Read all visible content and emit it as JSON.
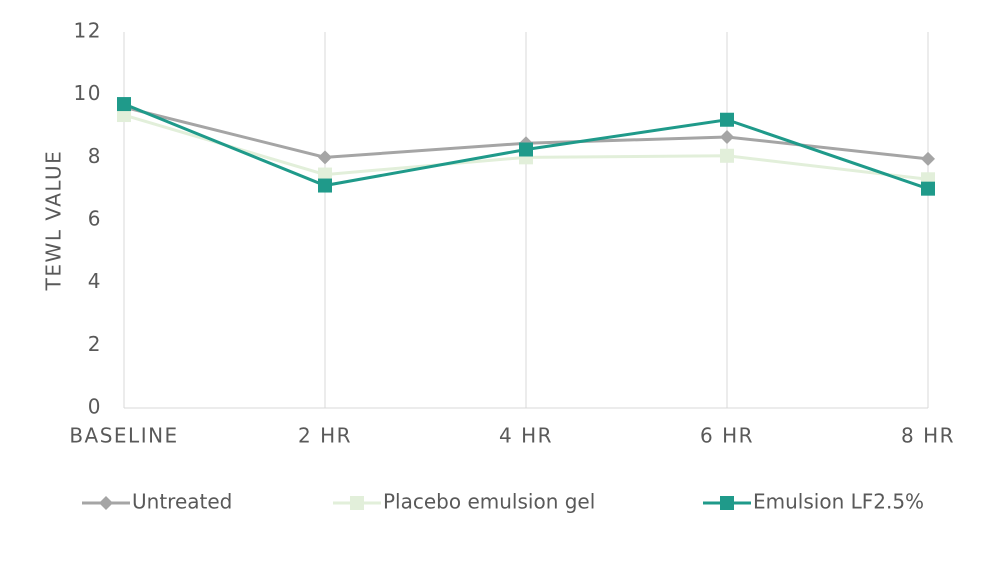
{
  "chart_data": {
    "type": "line",
    "categories": [
      "BASELINE",
      "2 HR",
      "4 HR",
      "6 HR",
      "8 HR"
    ],
    "y_label": "TEWL VALUE",
    "series": [
      {
        "name": "Untreated",
        "color": "#a5a5a5",
        "marker": "diamond",
        "values": [
          9.6,
          8.0,
          8.45,
          8.65,
          7.95
        ]
      },
      {
        "name": "Placebo emulsion gel",
        "color": "#e2efda",
        "marker": "square",
        "values": [
          9.35,
          7.45,
          8.0,
          8.05,
          7.3
        ]
      },
      {
        "name": "Emulsion LF2.5%",
        "color": "#1f9a8a",
        "marker": "square",
        "values": [
          9.7,
          7.1,
          8.25,
          9.2,
          7.0
        ]
      }
    ],
    "ylim": [
      0,
      12
    ],
    "yticks": [
      0,
      2,
      4,
      6,
      8,
      10,
      12
    ],
    "grid": "x",
    "legend": "bottom"
  }
}
